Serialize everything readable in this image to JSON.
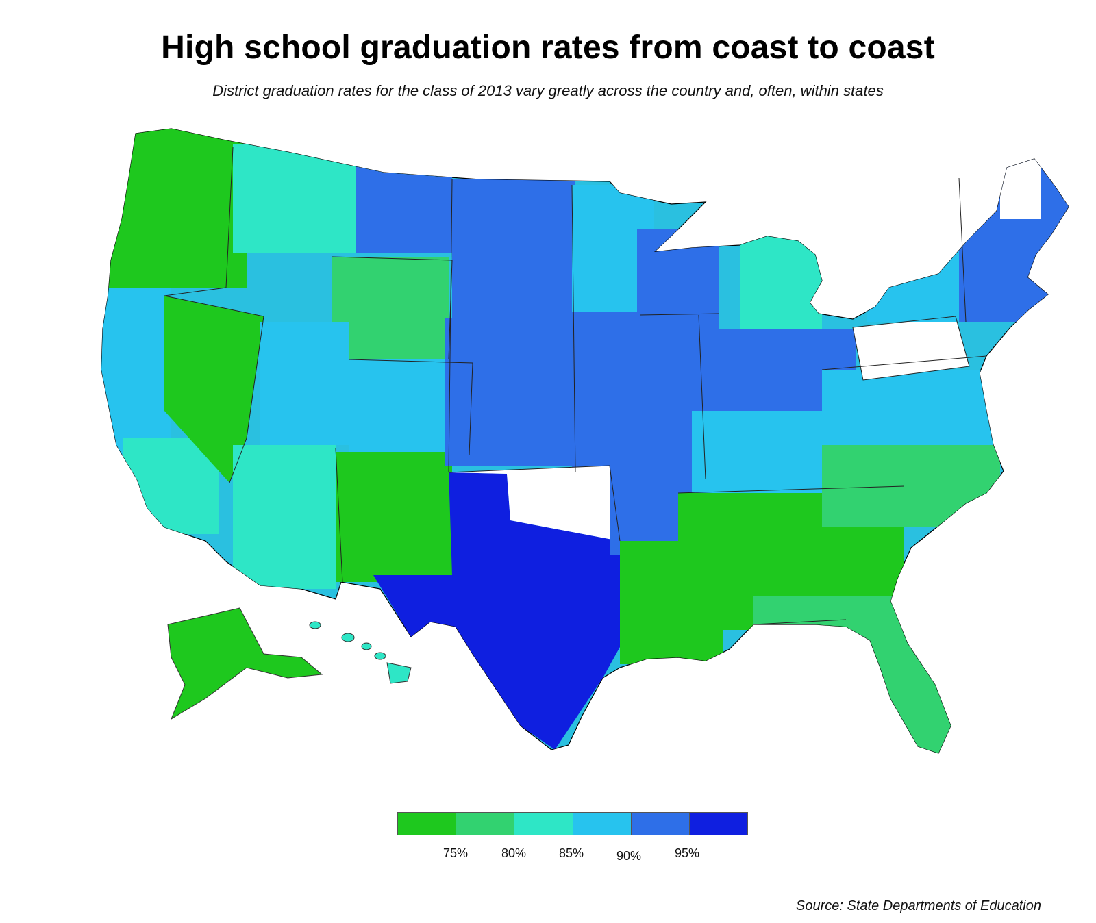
{
  "title": "High school graduation rates from coast to coast",
  "subtitle": "District graduation rates for the class of 2013 vary greatly across the country and, often, within states",
  "source": "Source: State Departments of Education",
  "legend": {
    "colors": [
      "#1ec81e",
      "#32d270",
      "#2ee6c6",
      "#27c3ee",
      "#2e6fe8",
      "#0f1fe0"
    ],
    "bins": [
      "<75%",
      "75–80%",
      "80–85%",
      "85–90%",
      "90–95%",
      ">95%"
    ],
    "ticks": [
      "75%",
      "80%",
      "85%",
      "90%",
      "95%"
    ]
  },
  "map": {
    "no_data_color": "#ffffff",
    "boundary_color": "#555555",
    "regions": [
      {
        "name": "Pacific Northwest",
        "class": "<75%"
      },
      {
        "name": "California",
        "class": "85–90%"
      },
      {
        "name": "Nevada",
        "class": "<75%"
      },
      {
        "name": "Idaho / Montana",
        "class": "85–90%"
      },
      {
        "name": "Wyoming",
        "class": "75–80%"
      },
      {
        "name": "Utah",
        "class": "85–90%"
      },
      {
        "name": "Arizona",
        "class": "80–85%"
      },
      {
        "name": "New Mexico",
        "class": "<75%"
      },
      {
        "name": "Colorado",
        "class": "85–90%"
      },
      {
        "name": "Dakotas",
        "class": "90–95%"
      },
      {
        "name": "Nebraska / Kansas",
        "class": "90–95%"
      },
      {
        "name": "Texas",
        "class": ">95%"
      },
      {
        "name": "Minnesota / Iowa",
        "class": "90–95%"
      },
      {
        "name": "Great Lakes",
        "class": "90–95%"
      },
      {
        "name": "Southeast",
        "class": "<75%"
      },
      {
        "name": "Florida",
        "class": "75–80%"
      },
      {
        "name": "Mid-Atlantic",
        "class": "85–90%"
      },
      {
        "name": "New England",
        "class": "85–90%"
      },
      {
        "name": "Alaska",
        "class": "<75%"
      },
      {
        "name": "Hawaii",
        "class": "80–85%"
      },
      {
        "name": "Oklahoma",
        "class": "no data"
      },
      {
        "name": "Pennsylvania",
        "class": "no data"
      }
    ]
  }
}
